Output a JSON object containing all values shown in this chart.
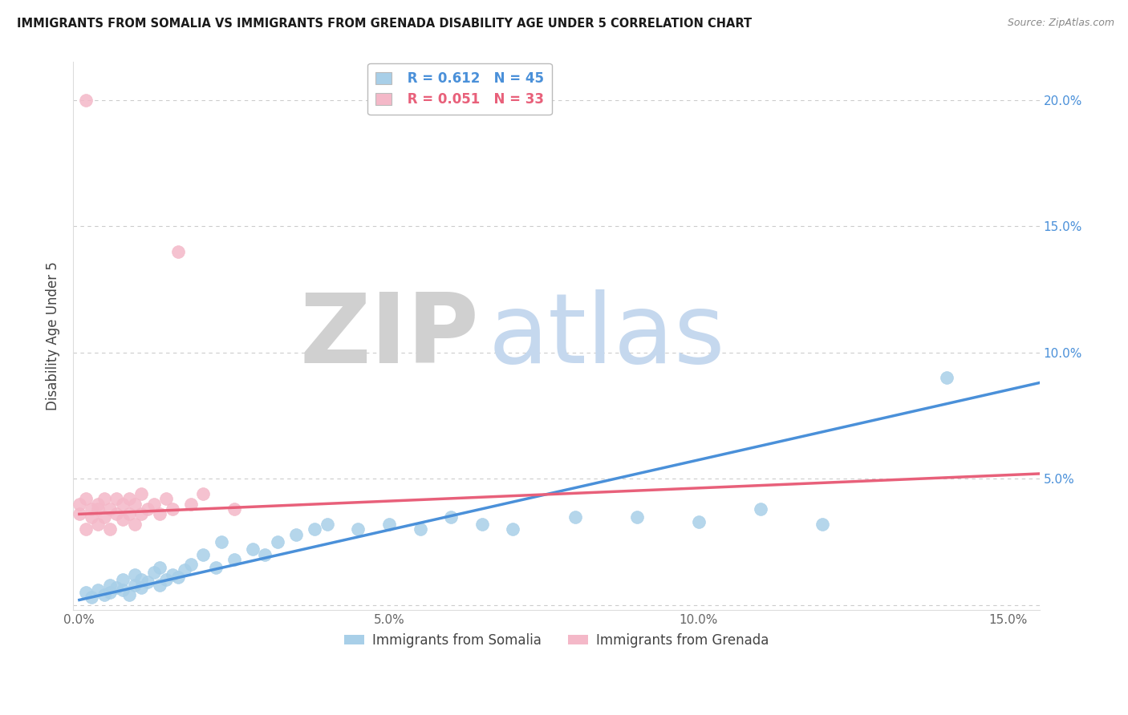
{
  "title": "IMMIGRANTS FROM SOMALIA VS IMMIGRANTS FROM GRENADA DISABILITY AGE UNDER 5 CORRELATION CHART",
  "source": "Source: ZipAtlas.com",
  "ylabel": "Disability Age Under 5",
  "xlabel_somalia": "Immigrants from Somalia",
  "xlabel_grenada": "Immigrants from Grenada",
  "xlim": [
    -0.001,
    0.155
  ],
  "ylim": [
    -0.002,
    0.215
  ],
  "yticks": [
    0.0,
    0.05,
    0.1,
    0.15,
    0.2
  ],
  "ytick_labels_left": [
    "",
    "",
    "",
    "",
    ""
  ],
  "ytick_labels_right": [
    "",
    "5.0%",
    "10.0%",
    "15.0%",
    "20.0%"
  ],
  "xticks": [
    0.0,
    0.05,
    0.1,
    0.15
  ],
  "xtick_labels": [
    "0.0%",
    "5.0%",
    "10.0%",
    "15.0%"
  ],
  "somalia_R": 0.612,
  "somalia_N": 45,
  "grenada_R": 0.051,
  "grenada_N": 33,
  "somalia_color": "#a8cfe8",
  "grenada_color": "#f4b8c8",
  "somalia_line_color": "#4a90d9",
  "grenada_line_color": "#e8607a",
  "somalia_scatter_x": [
    0.001,
    0.002,
    0.003,
    0.004,
    0.005,
    0.005,
    0.006,
    0.007,
    0.007,
    0.008,
    0.009,
    0.009,
    0.01,
    0.01,
    0.011,
    0.012,
    0.013,
    0.013,
    0.014,
    0.015,
    0.016,
    0.017,
    0.018,
    0.02,
    0.022,
    0.023,
    0.025,
    0.028,
    0.03,
    0.032,
    0.035,
    0.038,
    0.04,
    0.045,
    0.05,
    0.055,
    0.06,
    0.065,
    0.07,
    0.08,
    0.09,
    0.1,
    0.11,
    0.12,
    0.14
  ],
  "somalia_scatter_y": [
    0.005,
    0.003,
    0.006,
    0.004,
    0.008,
    0.005,
    0.007,
    0.006,
    0.01,
    0.004,
    0.008,
    0.012,
    0.007,
    0.01,
    0.009,
    0.013,
    0.008,
    0.015,
    0.01,
    0.012,
    0.011,
    0.014,
    0.016,
    0.02,
    0.015,
    0.025,
    0.018,
    0.022,
    0.02,
    0.025,
    0.028,
    0.03,
    0.032,
    0.03,
    0.032,
    0.03,
    0.035,
    0.032,
    0.03,
    0.035,
    0.035,
    0.033,
    0.038,
    0.032,
    0.09
  ],
  "grenada_scatter_x": [
    0.0,
    0.0,
    0.001,
    0.001,
    0.001,
    0.002,
    0.002,
    0.003,
    0.003,
    0.003,
    0.004,
    0.004,
    0.005,
    0.005,
    0.006,
    0.006,
    0.007,
    0.007,
    0.008,
    0.008,
    0.009,
    0.009,
    0.01,
    0.01,
    0.011,
    0.012,
    0.013,
    0.014,
    0.015,
    0.016,
    0.018,
    0.02,
    0.025
  ],
  "grenada_scatter_y": [
    0.036,
    0.04,
    0.03,
    0.042,
    0.2,
    0.035,
    0.038,
    0.032,
    0.04,
    0.038,
    0.035,
    0.042,
    0.03,
    0.038,
    0.036,
    0.042,
    0.034,
    0.04,
    0.036,
    0.042,
    0.032,
    0.04,
    0.036,
    0.044,
    0.038,
    0.04,
    0.036,
    0.042,
    0.038,
    0.14,
    0.04,
    0.044,
    0.038
  ],
  "somalia_regline_x": [
    0.0,
    0.155
  ],
  "somalia_regline_y": [
    0.002,
    0.088
  ],
  "grenada_regline_x": [
    0.0,
    0.155
  ],
  "grenada_regline_y": [
    0.036,
    0.052
  ]
}
